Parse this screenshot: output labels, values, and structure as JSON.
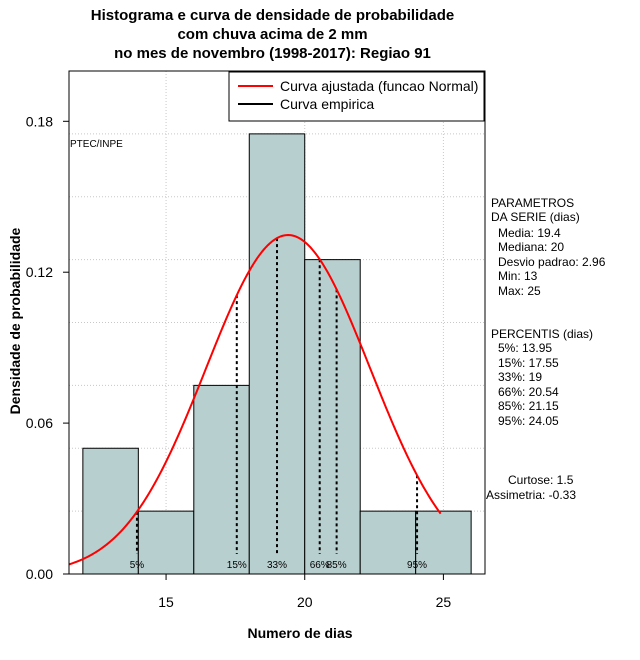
{
  "title_lines": [
    "Histograma e curva de densidade de probabilidade",
    "com chuva acima de 2 mm",
    "no mes de novembro (1998-2017): Regiao 91"
  ],
  "xlabel": "Numero de dias",
  "ylabel": "Densidade de probabilidade",
  "watermark": "PTEC/INPE",
  "legend": {
    "position": "top-right",
    "items": [
      {
        "label": "Curva ajustada (funcao Normal)",
        "color": "#ff0000"
      },
      {
        "label": "Curva empirica",
        "color": "#000000"
      }
    ]
  },
  "params": {
    "heading": [
      "PARAMETROS",
      "DA SERIE (dias)"
    ],
    "lines": [
      "Media: 19.4",
      "Mediana: 20",
      "Desvio padrao: 2.96",
      "Min: 13",
      "Max: 25"
    ]
  },
  "percentis": {
    "heading": "PERCENTIS (dias)",
    "lines": [
      "5%: 13.95",
      "15%: 17.55",
      "33%: 19",
      "66%: 20.54",
      "85%: 21.15",
      "95%: 24.05"
    ]
  },
  "stats": {
    "curtose": "Curtose: 1.5",
    "assimetria": "Assimetria: -0.33"
  },
  "chart_data": {
    "type": "bar",
    "title": "Histograma e curva de densidade de probabilidade com chuva acima de 2 mm no mes de novembro (1998-2017): Regiao 91",
    "xlabel": "Numero de dias",
    "ylabel": "Densidade de probabilidade",
    "xlim": [
      11.5,
      26.5
    ],
    "ylim": [
      0,
      0.2
    ],
    "x_ticks": [
      15,
      20,
      25
    ],
    "y_ticks": [
      0.0,
      0.06,
      0.12,
      0.18
    ],
    "y_tick_labels": [
      "0.00",
      "0.06",
      "0.12",
      "0.18"
    ],
    "grid": true,
    "bar_color": "#b8cfcf",
    "bins": [
      {
        "left": 12,
        "right": 14,
        "density": 0.05
      },
      {
        "left": 14,
        "right": 16,
        "density": 0.025
      },
      {
        "left": 16,
        "right": 18,
        "density": 0.075
      },
      {
        "left": 18,
        "right": 20,
        "density": 0.175
      },
      {
        "left": 20,
        "right": 22,
        "density": 0.125
      },
      {
        "left": 22,
        "right": 24,
        "density": 0.025
      },
      {
        "left": 24,
        "right": 26,
        "density": 0.025
      }
    ],
    "normal_curve": {
      "mean": 19.4,
      "sd": 2.96,
      "x_range": [
        11.5,
        24.9
      ],
      "color": "#ff0000"
    },
    "percentile_lines": [
      {
        "label": "5%",
        "x": 13.95
      },
      {
        "label": "15%",
        "x": 17.55
      },
      {
        "label": "33%",
        "x": 19.0
      },
      {
        "label": "66%",
        "x": 20.54
      },
      {
        "label": "85%",
        "x": 21.15
      },
      {
        "label": "95%",
        "x": 24.05
      }
    ]
  }
}
